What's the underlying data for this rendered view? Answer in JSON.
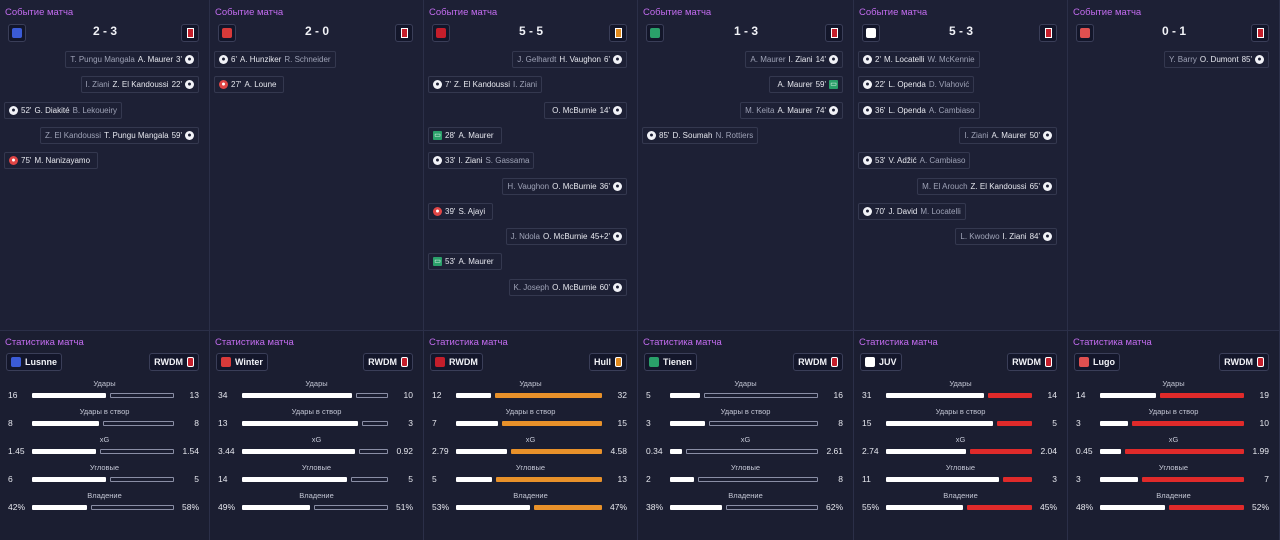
{
  "labels": {
    "event_title": "Событие матча",
    "stats_title": "Статистика матча"
  },
  "stat_names": [
    "Удары",
    "Удары в створ",
    "xG",
    "Угловые",
    "Владение"
  ],
  "matches": [
    {
      "score": "2 - 3",
      "home_color": "#3b5bd6",
      "away_color": "#c41e2b",
      "events": [
        {
          "side": "away",
          "text": "T. Pungu Mangala",
          "main": "A. Maurer",
          "min": "3'",
          "icon": "ball"
        },
        {
          "side": "away",
          "text": "I. Ziani",
          "main": "Z. El Kandoussi",
          "min": "22'",
          "icon": "ball"
        },
        {
          "side": "home",
          "text": "B. Lekoueiry",
          "main": "G. Diakité",
          "min": "52'",
          "icon": "ball"
        },
        {
          "side": "away",
          "text": "Z. El Kandoussi",
          "main": "T. Pungu Mangala",
          "min": "59'",
          "icon": "ball"
        },
        {
          "side": "home",
          "text": "",
          "main": "M. Nanizayamo",
          "min": "75'",
          "icon": "own"
        }
      ],
      "home_name": "Lusnne",
      "away_name": "RWDM",
      "bar_color": "#ffffff",
      "stats": [
        [
          "16",
          "13"
        ],
        [
          "8",
          "8"
        ],
        [
          "1.45",
          "1.54"
        ],
        [
          "6",
          "5"
        ],
        [
          "42%",
          "58%"
        ]
      ],
      "ratio": [
        0.55,
        0.5,
        0.48,
        0.55,
        0.42
      ]
    },
    {
      "score": "2 - 0",
      "home_color": "#d93a3a",
      "away_color": "#c41e2b",
      "events": [
        {
          "side": "home",
          "text": "R. Schneider",
          "main": "A. Hunziker",
          "min": "6'",
          "icon": "ball"
        },
        {
          "side": "home",
          "text": "",
          "main": "A. Loune",
          "min": "27'",
          "icon": "own"
        }
      ],
      "home_name": "Winter",
      "away_name": "RWDM",
      "bar_color": "#ffffff",
      "stats": [
        [
          "34",
          "10"
        ],
        [
          "13",
          "3"
        ],
        [
          "3.44",
          "0.92"
        ],
        [
          "14",
          "5"
        ],
        [
          "49%",
          "51%"
        ]
      ],
      "ratio": [
        0.77,
        0.81,
        0.79,
        0.74,
        0.49
      ]
    },
    {
      "score": "5 - 5",
      "home_color": "#c41e2b",
      "away_color": "#e08a1e",
      "events": [
        {
          "side": "away",
          "text": "J. Gelhardt",
          "main": "H. Vaughon",
          "min": "6'",
          "icon": "ball"
        },
        {
          "side": "home",
          "text": "I. Ziani",
          "main": "Z. El Kandoussi",
          "min": "7'",
          "icon": "ball"
        },
        {
          "side": "away",
          "text": "",
          "main": "O. McBurnie",
          "min": "14'",
          "icon": "ball"
        },
        {
          "side": "home",
          "text": "",
          "main": "A. Maurer",
          "min": "28'",
          "icon": "var"
        },
        {
          "side": "home",
          "text": "S. Gassama",
          "main": "I. Ziani",
          "min": "33'",
          "icon": "ball"
        },
        {
          "side": "away",
          "text": "H. Vaughon",
          "main": "O. McBurnie",
          "min": "36'",
          "icon": "ball"
        },
        {
          "side": "home",
          "text": "",
          "main": "S. Ajayi",
          "min": "39'",
          "icon": "own"
        },
        {
          "side": "away",
          "text": "J. Ndola",
          "main": "O. McBurnie",
          "min": "45+2'",
          "icon": "ball"
        },
        {
          "side": "home",
          "text": "",
          "main": "A. Maurer",
          "min": "53'",
          "icon": "var"
        },
        {
          "side": "away",
          "text": "K. Joseph",
          "main": "O. McBurnie",
          "min": "60'",
          "icon": "ball"
        }
      ],
      "home_name": "RWDM",
      "away_name": "Hull",
      "bar_color": "#e8912a",
      "stats": [
        [
          "12",
          "32"
        ],
        [
          "7",
          "15"
        ],
        [
          "2.79",
          "4.58"
        ],
        [
          "5",
          "13"
        ],
        [
          "53%",
          "47%"
        ]
      ],
      "ratio": [
        0.27,
        0.32,
        0.38,
        0.28,
        0.53
      ]
    },
    {
      "score": "1 - 3",
      "home_color": "#2aa06a",
      "away_color": "#c41e2b",
      "events": [
        {
          "side": "away",
          "text": "A. Maurer",
          "main": "I. Ziani",
          "min": "14'",
          "icon": "ball"
        },
        {
          "side": "away",
          "text": "",
          "main": "A. Maurer",
          "min": "59'",
          "icon": "var"
        },
        {
          "side": "away",
          "text": "M. Keita",
          "main": "A. Maurer",
          "min": "74'",
          "icon": "ball"
        },
        {
          "side": "home",
          "text": "N. Rottiers",
          "main": "D. Soumah",
          "min": "85'",
          "icon": "ball"
        }
      ],
      "home_name": "Tienen",
      "away_name": "RWDM",
      "bar_color": "#ffffff",
      "stats": [
        [
          "5",
          "16"
        ],
        [
          "3",
          "8"
        ],
        [
          "0.34",
          "2.61"
        ],
        [
          "2",
          "8"
        ],
        [
          "38%",
          "62%"
        ]
      ],
      "ratio": [
        0.24,
        0.27,
        0.12,
        0.2,
        0.38
      ]
    },
    {
      "score": "5 - 3",
      "home_color": "#ffffff",
      "away_color": "#c41e2b",
      "events": [
        {
          "side": "home",
          "text": "W. McKennie",
          "main": "M. Locatelli",
          "min": "2'",
          "icon": "ball"
        },
        {
          "side": "home",
          "text": "D. Vlahović",
          "main": "L. Openda",
          "min": "22'",
          "icon": "ball"
        },
        {
          "side": "home",
          "text": "A. Cambiaso",
          "main": "L. Openda",
          "min": "36'",
          "icon": "ball"
        },
        {
          "side": "away",
          "text": "I. Ziani",
          "main": "A. Maurer",
          "min": "50'",
          "icon": "ball"
        },
        {
          "side": "home",
          "text": "A. Cambiaso",
          "main": "V. Adžić",
          "min": "53'",
          "icon": "ball"
        },
        {
          "side": "away",
          "text": "M. El Arouch",
          "main": "Z. El Kandoussi",
          "min": "65'",
          "icon": "ball"
        },
        {
          "side": "home",
          "text": "M. Locatelli",
          "main": "J. David",
          "min": "70'",
          "icon": "ball"
        },
        {
          "side": "away",
          "text": "L. Kwodwo",
          "main": "I. Ziani",
          "min": "84'",
          "icon": "ball"
        }
      ],
      "home_name": "JUV",
      "away_name": "RWDM",
      "bar_color": "#e02a2a",
      "stats": [
        [
          "31",
          "14"
        ],
        [
          "15",
          "5"
        ],
        [
          "2.74",
          "2.04"
        ],
        [
          "11",
          "3"
        ],
        [
          "55%",
          "45%"
        ]
      ],
      "ratio": [
        0.69,
        0.75,
        0.57,
        0.79,
        0.55
      ]
    },
    {
      "score": "0 - 1",
      "home_color": "#e05050",
      "away_color": "#c41e2b",
      "events": [
        {
          "side": "away",
          "text": "Y. Barry",
          "main": "O. Dumont",
          "min": "85'",
          "icon": "ball"
        }
      ],
      "home_name": "Lugo",
      "away_name": "RWDM",
      "bar_color": "#e02a2a",
      "stats": [
        [
          "14",
          "19"
        ],
        [
          "3",
          "10"
        ],
        [
          "0.45",
          "1.99"
        ],
        [
          "3",
          "7"
        ],
        [
          "48%",
          "52%"
        ]
      ],
      "ratio": [
        0.42,
        0.23,
        0.18,
        0.3,
        0.48
      ]
    }
  ]
}
